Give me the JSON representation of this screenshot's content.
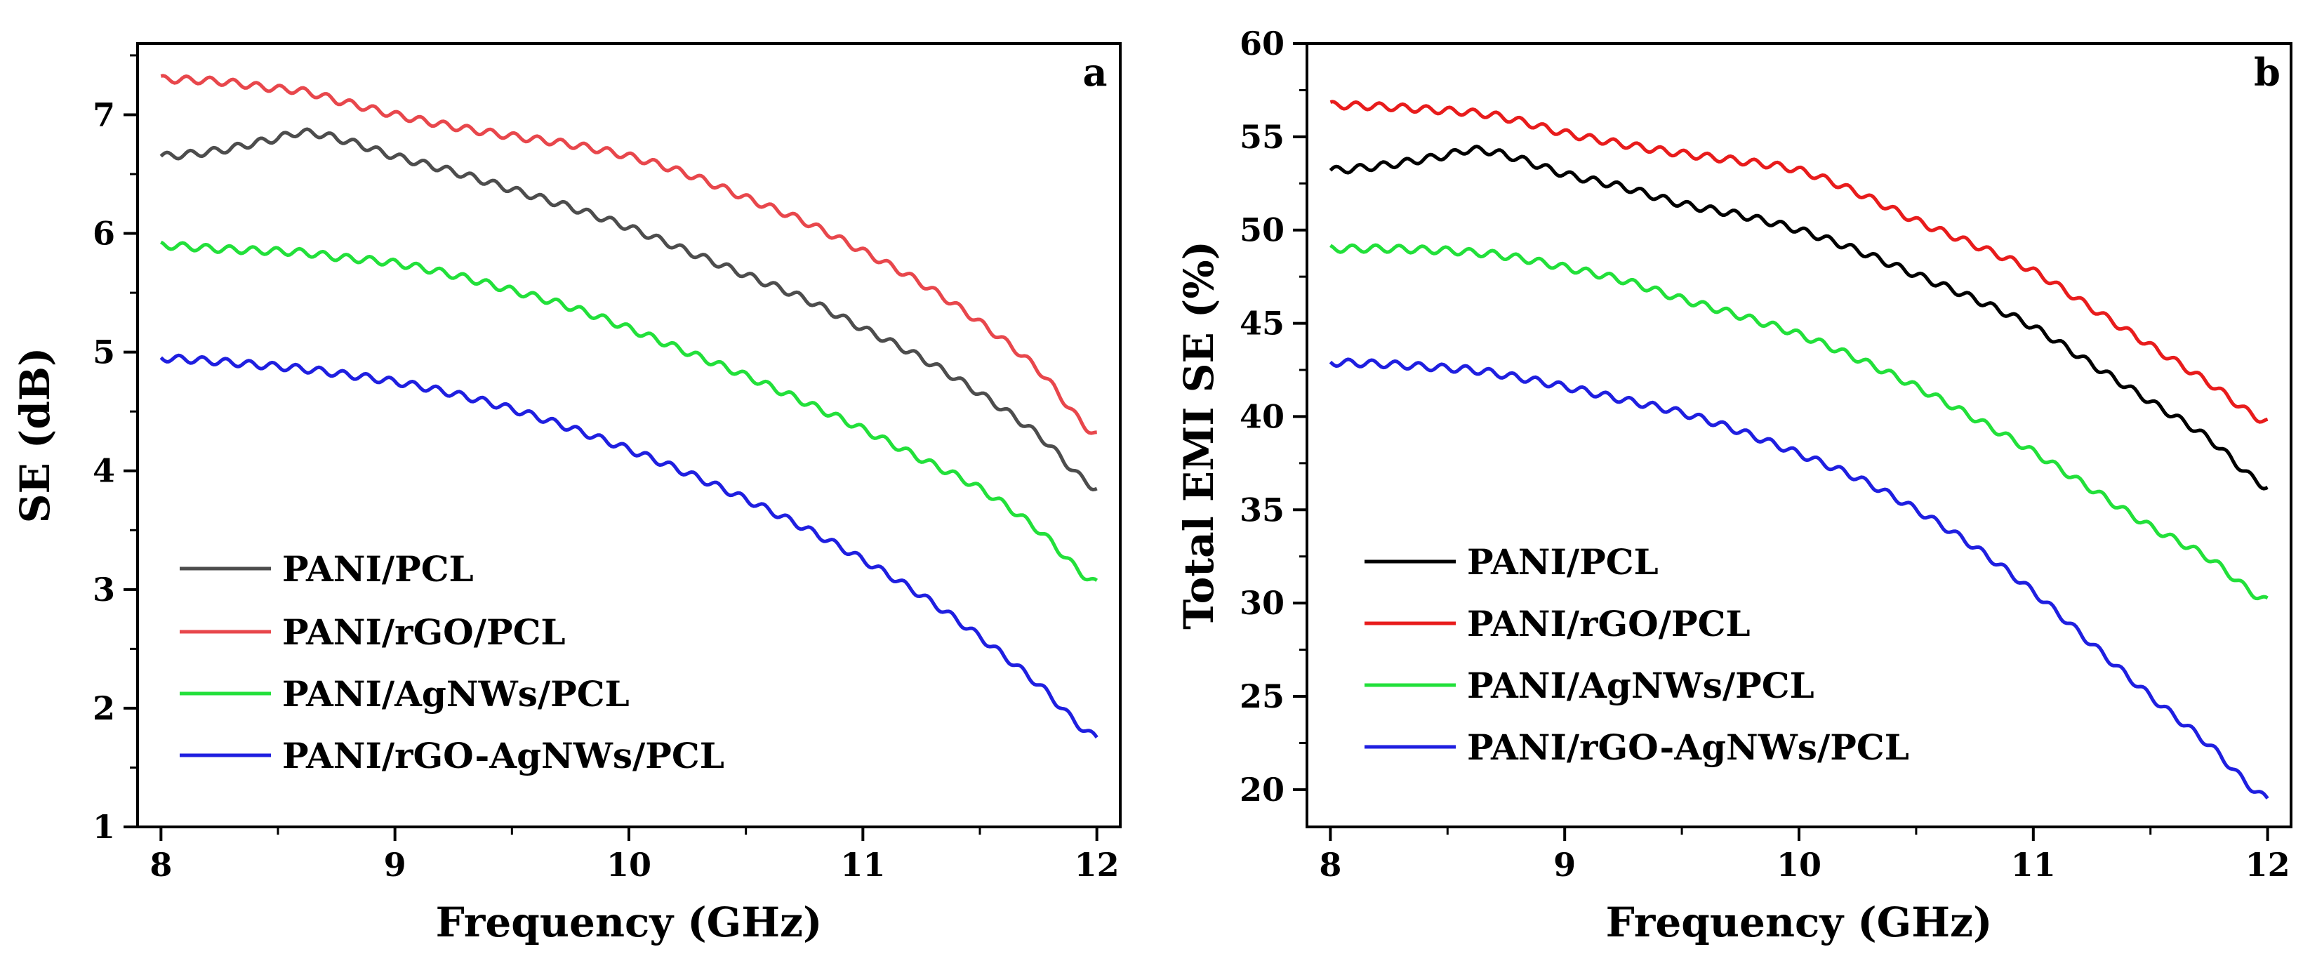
{
  "chart_data": [
    {
      "type": "line",
      "panel_label": "a",
      "xlabel": "Frequency (GHz)",
      "ylabel": "SE (dB)",
      "xlim": [
        7.9,
        12.1
      ],
      "ylim": [
        1,
        7.6
      ],
      "xticks": [
        "8",
        "9",
        "10",
        "11",
        "12"
      ],
      "yticks": [
        "1",
        "2",
        "3",
        "4",
        "5",
        "6",
        "7"
      ],
      "legend_position": "bottom-left",
      "x": [
        8.0,
        8.25,
        8.5,
        8.6,
        8.75,
        9.0,
        9.25,
        9.5,
        9.75,
        10.0,
        10.25,
        10.5,
        10.75,
        11.0,
        11.25,
        11.5,
        11.75,
        12.0
      ],
      "series": [
        {
          "name": "PANI/PCL",
          "color": "#4d4d4d",
          "values": [
            6.65,
            6.7,
            6.8,
            6.85,
            6.8,
            6.65,
            6.52,
            6.37,
            6.22,
            6.05,
            5.85,
            5.65,
            5.45,
            5.2,
            4.95,
            4.65,
            4.3,
            3.85
          ]
        },
        {
          "name": "PANI/rGO/PCL",
          "color": "#e8474c",
          "values": [
            7.3,
            7.28,
            7.22,
            7.2,
            7.12,
            7.0,
            6.9,
            6.82,
            6.75,
            6.65,
            6.5,
            6.3,
            6.1,
            5.85,
            5.58,
            5.25,
            4.85,
            4.3
          ]
        },
        {
          "name": "PANI/AgNWs/PCL",
          "color": "#22e03a",
          "values": [
            5.9,
            5.87,
            5.85,
            5.84,
            5.8,
            5.75,
            5.65,
            5.52,
            5.38,
            5.2,
            5.0,
            4.8,
            4.58,
            4.35,
            4.1,
            3.85,
            3.5,
            3.05
          ]
        },
        {
          "name": "PANI/rGO-AgNWs/PCL",
          "color": "#1f1fe0",
          "values": [
            4.95,
            4.92,
            4.88,
            4.86,
            4.82,
            4.75,
            4.65,
            4.52,
            4.36,
            4.18,
            3.98,
            3.76,
            3.52,
            3.25,
            2.95,
            2.6,
            2.2,
            1.75
          ]
        }
      ]
    },
    {
      "type": "line",
      "panel_label": "b",
      "xlabel": "Frequency (GHz)",
      "ylabel": "Total EMI SE (%)",
      "xlim": [
        7.9,
        12.1
      ],
      "ylim": [
        18,
        60
      ],
      "xticks": [
        "8",
        "9",
        "10",
        "11",
        "12"
      ],
      "yticks": [
        "20",
        "25",
        "30",
        "35",
        "40",
        "45",
        "50",
        "55",
        "60"
      ],
      "legend_position": "bottom-left",
      "x": [
        8.0,
        8.25,
        8.5,
        8.6,
        8.75,
        9.0,
        9.25,
        9.5,
        9.75,
        10.0,
        10.25,
        10.5,
        10.75,
        11.0,
        11.25,
        11.5,
        11.75,
        12.0
      ],
      "series": [
        {
          "name": "PANI/PCL",
          "color": "#000000",
          "values": [
            53.2,
            53.5,
            54.0,
            54.3,
            54.0,
            53.0,
            52.3,
            51.4,
            50.8,
            50.0,
            48.9,
            47.6,
            46.3,
            44.8,
            42.8,
            40.8,
            38.8,
            36.2
          ]
        },
        {
          "name": "PANI/rGO/PCL",
          "color": "#e81c1c",
          "values": [
            56.7,
            56.6,
            56.4,
            56.3,
            56.0,
            55.2,
            54.6,
            54.1,
            53.7,
            53.2,
            52.0,
            50.5,
            49.2,
            47.8,
            45.8,
            43.8,
            41.8,
            39.7
          ]
        },
        {
          "name": "PANI/AgNWs/PCL",
          "color": "#22e03a",
          "values": [
            49.0,
            49.0,
            48.9,
            48.8,
            48.6,
            48.0,
            47.3,
            46.3,
            45.4,
            44.4,
            43.1,
            41.6,
            39.9,
            38.1,
            36.1,
            34.1,
            32.4,
            30.1
          ]
        },
        {
          "name": "PANI/rGO-AgNWs/PCL",
          "color": "#1f1fe0",
          "values": [
            42.9,
            42.8,
            42.6,
            42.5,
            42.2,
            41.6,
            40.9,
            40.2,
            39.2,
            38.0,
            36.7,
            35.0,
            33.0,
            30.6,
            27.8,
            25.0,
            22.4,
            19.5
          ]
        }
      ]
    }
  ]
}
